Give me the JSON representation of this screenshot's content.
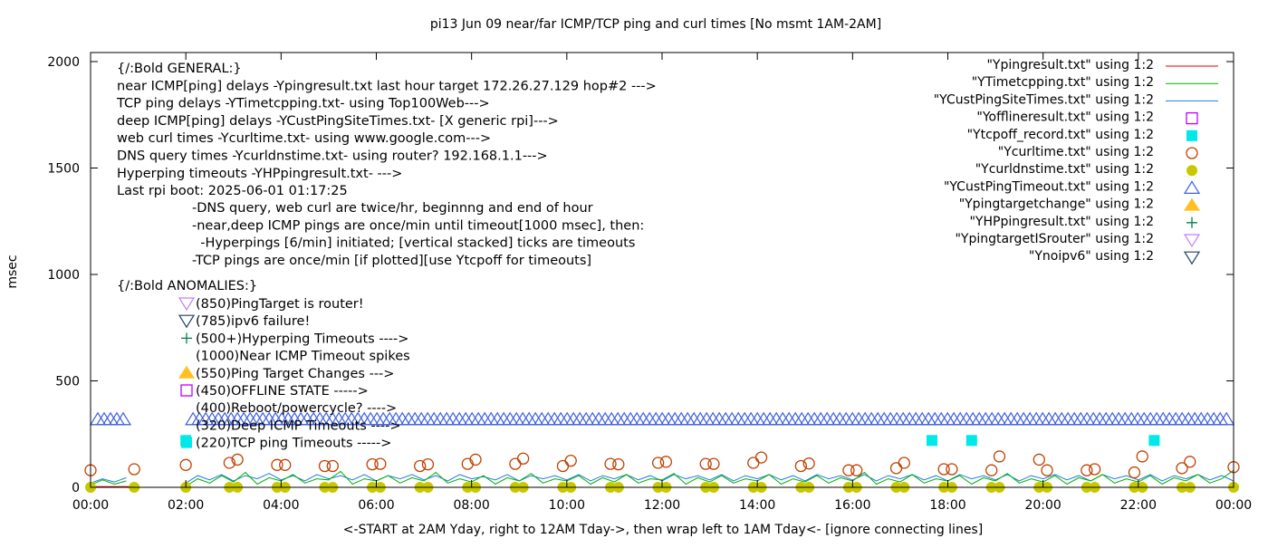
{
  "chart_data": {
    "type": "line",
    "title": "pi13 Jun 09  near/far ICMP/TCP ping and curl times [No msmt 1AM-2AM]",
    "xlabel": "<-START at 2AM Yday, right to 12AM Tday->, then wrap left to 1AM Tday<- [ignore connecting lines]",
    "ylabel": "msec",
    "xlim": [
      "00:00",
      "24:00"
    ],
    "ylim": [
      0,
      2050
    ],
    "x_ticks": [
      "00:00",
      "02:00",
      "04:00",
      "06:00",
      "08:00",
      "10:00",
      "12:00",
      "14:00",
      "16:00",
      "18:00",
      "20:00",
      "22:00",
      "00:00"
    ],
    "y_ticks": [
      "0",
      "500",
      "1000",
      "1500",
      "2000"
    ],
    "grid": false,
    "legend_position": "top-right",
    "legend": [
      {
        "label": "\"Ypingresult.txt\" using 1:2",
        "style": "line",
        "color": "#e00000"
      },
      {
        "label": "\"YTimetcpping.txt\" using 1:2",
        "style": "line",
        "color": "#00b000"
      },
      {
        "label": "\"YCustPingSiteTimes.txt\" using 1:2",
        "style": "line",
        "color": "#1e7ee0"
      },
      {
        "label": "\"Yofflineresult.txt\" using 1:2",
        "style": "open-square",
        "color": "#c000ff"
      },
      {
        "label": "\"Ytcpoff_record.txt\" using 1:2",
        "style": "filled-square",
        "color": "#00e8e8"
      },
      {
        "label": "\"Ycurltime.txt\" using 1:2",
        "style": "open-circle",
        "color": "#c04000"
      },
      {
        "label": "\"Ycurldnstime.txt\" using 1:2",
        "style": "filled-circle",
        "color": "#c8c800"
      },
      {
        "label": "\"YCustPingTimeout.txt\" using 1:2",
        "style": "open-triangle-up",
        "color": "#4060e0"
      },
      {
        "label": "\"Ypingtargetchange\" using 1:2",
        "style": "filled-triangle-up",
        "color": "#ffc020"
      },
      {
        "label": "\"YHPpingresult.txt\" using 1:2",
        "style": "plus",
        "color": "#008040"
      },
      {
        "label": "\"YpingtargetISrouter\" using 1:2",
        "style": "open-triangle-down",
        "color": "#c080ff"
      },
      {
        "label": "\"Ynoipv6\" using 1:2",
        "style": "open-triangle-down",
        "color": "#204060"
      }
    ],
    "series": {
      "Ypingresult": [
        [
          "00:00",
          3
        ],
        [
          "00:55",
          3
        ],
        [
          "02:00",
          3
        ],
        [
          "24:00",
          3
        ]
      ],
      "YTimetcpping": [
        [
          "00:00",
          10
        ],
        [
          "00:15",
          35
        ],
        [
          "00:30",
          15
        ],
        [
          "00:45",
          30
        ],
        [
          "02:00",
          5
        ],
        [
          "02:15",
          40
        ],
        [
          "02:30",
          20
        ],
        [
          "02:45",
          55
        ],
        [
          "03:00",
          25
        ],
        [
          "03:15",
          70
        ],
        [
          "03:30",
          15
        ],
        [
          "03:45",
          45
        ],
        [
          "04:00",
          30
        ],
        [
          "04:15",
          60
        ],
        [
          "04:30",
          20
        ],
        [
          "04:45",
          40
        ],
        [
          "05:00",
          35
        ],
        [
          "05:15",
          75
        ],
        [
          "05:30",
          15
        ],
        [
          "05:45",
          40
        ],
        [
          "06:00",
          30
        ],
        [
          "06:15",
          55
        ],
        [
          "06:30",
          20
        ],
        [
          "06:45",
          45
        ],
        [
          "07:00",
          30
        ],
        [
          "07:15",
          70
        ],
        [
          "07:30",
          20
        ],
        [
          "07:45",
          40
        ],
        [
          "08:00",
          25
        ],
        [
          "08:15",
          55
        ],
        [
          "08:30",
          15
        ],
        [
          "08:45",
          45
        ],
        [
          "09:00",
          30
        ],
        [
          "09:15",
          65
        ],
        [
          "09:30",
          20
        ],
        [
          "09:45",
          40
        ],
        [
          "10:00",
          30
        ],
        [
          "10:15",
          55
        ],
        [
          "10:30",
          15
        ],
        [
          "10:45",
          45
        ],
        [
          "11:00",
          25
        ],
        [
          "11:15",
          60
        ],
        [
          "11:30",
          20
        ],
        [
          "11:45",
          40
        ],
        [
          "12:00",
          35
        ],
        [
          "12:15",
          65
        ],
        [
          "12:30",
          15
        ],
        [
          "12:45",
          45
        ],
        [
          "13:00",
          25
        ],
        [
          "13:15",
          55
        ],
        [
          "13:30",
          20
        ],
        [
          "13:45",
          40
        ],
        [
          "14:00",
          30
        ],
        [
          "14:15",
          60
        ],
        [
          "14:30",
          15
        ],
        [
          "14:45",
          40
        ],
        [
          "15:00",
          25
        ],
        [
          "15:15",
          55
        ],
        [
          "15:30",
          20
        ],
        [
          "15:45",
          45
        ],
        [
          "16:00",
          30
        ],
        [
          "16:15",
          70
        ],
        [
          "16:30",
          15
        ],
        [
          "16:45",
          40
        ],
        [
          "17:00",
          25
        ],
        [
          "17:15",
          60
        ],
        [
          "17:30",
          20
        ],
        [
          "17:45",
          40
        ],
        [
          "18:00",
          30
        ],
        [
          "18:15",
          55
        ],
        [
          "18:30",
          15
        ],
        [
          "18:45",
          45
        ],
        [
          "19:00",
          30
        ],
        [
          "19:15",
          65
        ],
        [
          "19:30",
          20
        ],
        [
          "19:45",
          40
        ],
        [
          "20:00",
          25
        ],
        [
          "20:15",
          55
        ],
        [
          "20:30",
          15
        ],
        [
          "20:45",
          45
        ],
        [
          "21:00",
          30
        ],
        [
          "21:15",
          60
        ],
        [
          "21:30",
          20
        ],
        [
          "21:45",
          40
        ],
        [
          "22:00",
          25
        ],
        [
          "22:15",
          55
        ],
        [
          "22:30",
          15
        ],
        [
          "22:45",
          45
        ],
        [
          "23:00",
          30
        ],
        [
          "23:15",
          60
        ],
        [
          "23:30",
          20
        ],
        [
          "23:45",
          40
        ],
        [
          "24:00",
          80
        ]
      ],
      "YCustPingSiteTimes": [
        [
          "00:00",
          20
        ],
        [
          "00:15",
          40
        ],
        [
          "00:30",
          25
        ],
        [
          "00:45",
          45
        ],
        [
          "02:00",
          20
        ],
        [
          "02:15",
          55
        ],
        [
          "02:30",
          35
        ],
        [
          "02:45",
          60
        ],
        [
          "03:00",
          30
        ],
        [
          "03:15",
          55
        ],
        [
          "03:30",
          40
        ],
        [
          "03:45",
          65
        ],
        [
          "04:00",
          35
        ],
        [
          "04:15",
          55
        ],
        [
          "04:30",
          30
        ],
        [
          "04:45",
          60
        ],
        [
          "05:00",
          40
        ],
        [
          "05:15",
          55
        ],
        [
          "05:30",
          35
        ],
        [
          "05:45",
          60
        ],
        [
          "06:00",
          30
        ],
        [
          "06:15",
          55
        ],
        [
          "06:30",
          40
        ],
        [
          "06:45",
          60
        ],
        [
          "07:00",
          35
        ],
        [
          "07:15",
          55
        ],
        [
          "07:30",
          30
        ],
        [
          "07:45",
          60
        ],
        [
          "08:00",
          40
        ],
        [
          "08:15",
          50
        ],
        [
          "08:30",
          35
        ],
        [
          "08:45",
          60
        ],
        [
          "09:00",
          30
        ],
        [
          "09:15",
          55
        ],
        [
          "09:30",
          40
        ],
        [
          "09:45",
          55
        ],
        [
          "10:00",
          35
        ],
        [
          "10:15",
          60
        ],
        [
          "10:30",
          30
        ],
        [
          "10:45",
          55
        ],
        [
          "11:00",
          40
        ],
        [
          "11:15",
          60
        ],
        [
          "11:30",
          35
        ],
        [
          "11:45",
          55
        ],
        [
          "12:00",
          30
        ],
        [
          "12:15",
          60
        ],
        [
          "12:30",
          40
        ],
        [
          "12:45",
          55
        ],
        [
          "13:00",
          35
        ],
        [
          "13:15",
          60
        ],
        [
          "13:30",
          30
        ],
        [
          "13:45",
          55
        ],
        [
          "14:00",
          40
        ],
        [
          "14:15",
          60
        ],
        [
          "14:30",
          35
        ],
        [
          "14:45",
          55
        ],
        [
          "15:00",
          30
        ],
        [
          "15:15",
          60
        ],
        [
          "15:30",
          40
        ],
        [
          "15:45",
          55
        ],
        [
          "16:00",
          35
        ],
        [
          "16:15",
          60
        ],
        [
          "16:30",
          30
        ],
        [
          "16:45",
          55
        ],
        [
          "17:00",
          40
        ],
        [
          "17:15",
          60
        ],
        [
          "17:30",
          35
        ],
        [
          "17:45",
          55
        ],
        [
          "18:00",
          30
        ],
        [
          "18:15",
          60
        ],
        [
          "18:30",
          40
        ],
        [
          "18:45",
          55
        ],
        [
          "19:00",
          35
        ],
        [
          "19:15",
          60
        ],
        [
          "19:30",
          30
        ],
        [
          "19:45",
          55
        ],
        [
          "20:00",
          40
        ],
        [
          "20:15",
          60
        ],
        [
          "20:30",
          35
        ],
        [
          "20:45",
          55
        ],
        [
          "21:00",
          30
        ],
        [
          "21:15",
          60
        ],
        [
          "21:30",
          40
        ],
        [
          "21:45",
          55
        ],
        [
          "22:00",
          35
        ],
        [
          "22:15",
          60
        ],
        [
          "22:30",
          30
        ],
        [
          "22:45",
          55
        ],
        [
          "23:00",
          40
        ],
        [
          "23:15",
          60
        ],
        [
          "23:30",
          35
        ],
        [
          "23:45",
          55
        ],
        [
          "24:00",
          30
        ]
      ],
      "Ytcpoff_record": [
        [
          "02:00",
          220
        ],
        [
          "17:40",
          220
        ],
        [
          "18:30",
          220
        ],
        [
          "22:20",
          220
        ]
      ],
      "Ycurltime": [
        [
          "00:00",
          80
        ],
        [
          "00:55",
          85
        ],
        [
          "02:00",
          105
        ],
        [
          "02:55",
          115
        ],
        [
          "03:05",
          130
        ],
        [
          "03:55",
          105
        ],
        [
          "04:05",
          105
        ],
        [
          "04:55",
          100
        ],
        [
          "05:05",
          100
        ],
        [
          "05:55",
          108
        ],
        [
          "06:05",
          110
        ],
        [
          "06:55",
          100
        ],
        [
          "07:05",
          108
        ],
        [
          "07:55",
          110
        ],
        [
          "08:05",
          130
        ],
        [
          "08:55",
          110
        ],
        [
          "09:05",
          135
        ],
        [
          "09:55",
          100
        ],
        [
          "10:05",
          125
        ],
        [
          "10:55",
          110
        ],
        [
          "11:05",
          108
        ],
        [
          "11:55",
          115
        ],
        [
          "12:05",
          120
        ],
        [
          "12:55",
          110
        ],
        [
          "13:05",
          110
        ],
        [
          "13:55",
          115
        ],
        [
          "14:05",
          140
        ],
        [
          "14:55",
          100
        ],
        [
          "15:05",
          112
        ],
        [
          "15:55",
          80
        ],
        [
          "16:05",
          80
        ],
        [
          "16:55",
          90
        ],
        [
          "17:05",
          115
        ],
        [
          "17:55",
          85
        ],
        [
          "18:05",
          85
        ],
        [
          "18:55",
          80
        ],
        [
          "19:05",
          145
        ],
        [
          "19:55",
          130
        ],
        [
          "20:05",
          80
        ],
        [
          "20:55",
          80
        ],
        [
          "21:05",
          85
        ],
        [
          "21:55",
          70
        ],
        [
          "22:05",
          145
        ],
        [
          "22:55",
          90
        ],
        [
          "23:05",
          120
        ],
        [
          "24:00",
          95
        ]
      ],
      "Ycurldnstime": [
        [
          "00:00",
          0
        ],
        [
          "00:55",
          0
        ],
        [
          "02:00",
          0
        ],
        [
          "02:55",
          0
        ],
        [
          "03:05",
          0
        ],
        [
          "03:55",
          0
        ],
        [
          "04:05",
          0
        ],
        [
          "04:55",
          0
        ],
        [
          "05:05",
          0
        ],
        [
          "05:55",
          0
        ],
        [
          "06:05",
          0
        ],
        [
          "06:55",
          0
        ],
        [
          "07:05",
          0
        ],
        [
          "07:55",
          0
        ],
        [
          "08:05",
          0
        ],
        [
          "08:55",
          0
        ],
        [
          "09:05",
          0
        ],
        [
          "09:55",
          0
        ],
        [
          "10:05",
          0
        ],
        [
          "10:55",
          0
        ],
        [
          "11:05",
          0
        ],
        [
          "11:55",
          0
        ],
        [
          "12:05",
          0
        ],
        [
          "12:55",
          0
        ],
        [
          "13:05",
          0
        ],
        [
          "13:55",
          0
        ],
        [
          "14:05",
          0
        ],
        [
          "14:55",
          0
        ],
        [
          "15:05",
          0
        ],
        [
          "15:55",
          0
        ],
        [
          "16:05",
          0
        ],
        [
          "16:55",
          0
        ],
        [
          "17:05",
          0
        ],
        [
          "17:55",
          0
        ],
        [
          "18:05",
          0
        ],
        [
          "18:55",
          0
        ],
        [
          "19:05",
          0
        ],
        [
          "19:55",
          0
        ],
        [
          "20:05",
          0
        ],
        [
          "20:55",
          0
        ],
        [
          "21:05",
          0
        ],
        [
          "21:55",
          0
        ],
        [
          "22:05",
          0
        ],
        [
          "22:55",
          0
        ],
        [
          "23:05",
          0
        ],
        [
          "24:00",
          0
        ]
      ],
      "YCustPingTimeout": {
        "value": 320,
        "ranges": [
          [
            "00:00",
            "00:50"
          ],
          [
            "02:00",
            "24:00"
          ]
        ]
      }
    }
  },
  "annotations": {
    "general": [
      "{/:Bold GENERAL:}",
      "near ICMP[ping] delays -Ypingresult.txt last hour target 172.26.27.129 hop#2 --->",
      "TCP ping delays -YTimetcpping.txt- using Top100Web--->",
      "deep ICMP[ping] delays -YCustPingSiteTimes.txt- [X generic rpi]--->",
      "web curl times -Ycurltime.txt- using www.google.com--->",
      "DNS query times -Ycurldnstime.txt- using router? 192.168.1.1--->",
      "Hyperping timeouts -YHPpingresult.txt- --->",
      "Last rpi boot: 2025-06-01 01:17:25"
    ],
    "notes": [
      "-DNS query, web curl are twice/hr, beginnng and end of hour",
      "-near,deep ICMP pings are once/min until timeout[1000 msec], then:",
      "  -Hyperpings [6/min] initiated; [vertical stacked] ticks are timeouts",
      "-TCP pings are once/min [if plotted][use Ytcpoff for timeouts]"
    ],
    "anomalies_title": "{/:Bold ANOMALIES:}",
    "anomalies": [
      {
        "text": "(850)PingTarget is router!",
        "icon": "open-triangle-down",
        "color": "#c080ff"
      },
      {
        "text": "(785)ipv6 failure!",
        "icon": "open-triangle-down",
        "color": "#204060"
      },
      {
        "text": "(500+)Hyperping Timeouts ---->",
        "icon": "plus",
        "color": "#008040"
      },
      {
        "text": "(1000)Near ICMP Timeout spikes",
        "icon": "",
        "color": ""
      },
      {
        "text": "(550)Ping Target Changes --->",
        "icon": "filled-triangle-up",
        "color": "#ffc020"
      },
      {
        "text": "(450)OFFLINE STATE ----->",
        "icon": "open-square",
        "color": "#c000ff"
      },
      {
        "text": "(400)Reboot/powercycle? ---->",
        "icon": "",
        "color": ""
      },
      {
        "text": "(320)Deep ICMP Timeouts ---->",
        "icon": "",
        "color": ""
      },
      {
        "text": "(220)TCP ping Timeouts ----->",
        "icon": "filled-square",
        "color": "#00e8e8"
      }
    ]
  }
}
